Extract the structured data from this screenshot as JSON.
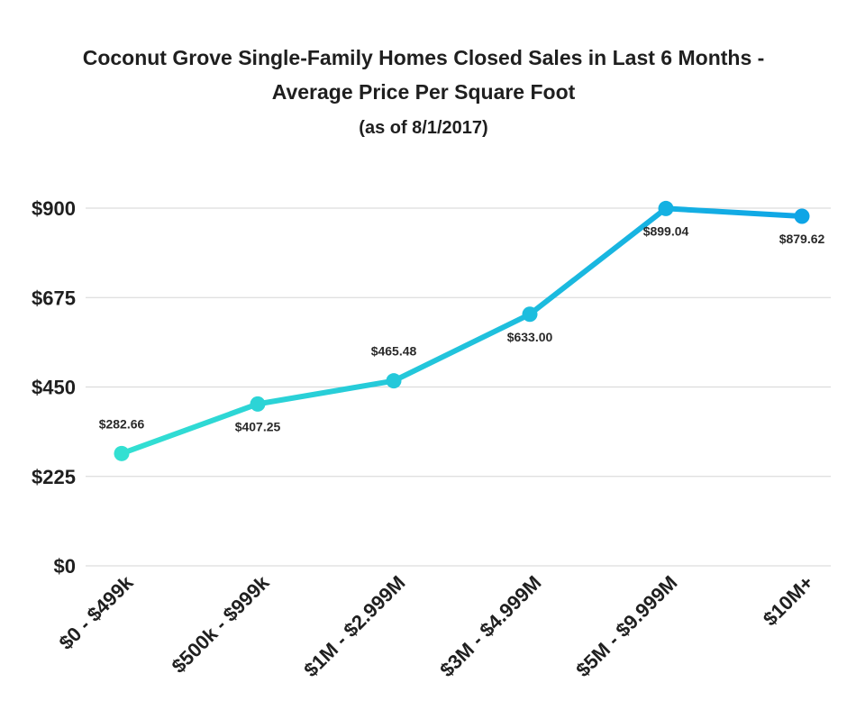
{
  "chart_data": {
    "type": "line",
    "title": "Coconut Grove Single-Family Homes Closed Sales in Last 6 Months -",
    "title_line2": "Average Price Per Square Foot",
    "subtitle": "(as of 8/1/2017)",
    "xlabel": "",
    "ylabel": "",
    "categories": [
      "$0 - $499k",
      "$500k - $999k",
      "$1M - $2.999M",
      "$3M - $4.999M",
      "$5M - $9.999M",
      "$10M+"
    ],
    "series": [
      {
        "name": "Average Price Per Square Foot",
        "values": [
          282.66,
          407.25,
          465.48,
          633.0,
          899.04,
          879.62
        ],
        "labels": [
          "$282.66",
          "$407.25",
          "$465.48",
          "$633.00",
          "$899.04",
          "$879.62"
        ],
        "label_positions": [
          "above",
          "below",
          "above",
          "below",
          "below",
          "below"
        ]
      }
    ],
    "ylim": [
      0,
      900
    ],
    "yticks": [
      0,
      225,
      450,
      675,
      900
    ],
    "ytick_labels": [
      "$0",
      "$225",
      "$450",
      "$675",
      "$900"
    ],
    "grid": true,
    "legend": "none",
    "colors": {
      "gradient_start": "#33e0d2",
      "gradient_end": "#0ea5e6",
      "grid": "#d6d6d6",
      "text": "#1f1f1f"
    }
  }
}
